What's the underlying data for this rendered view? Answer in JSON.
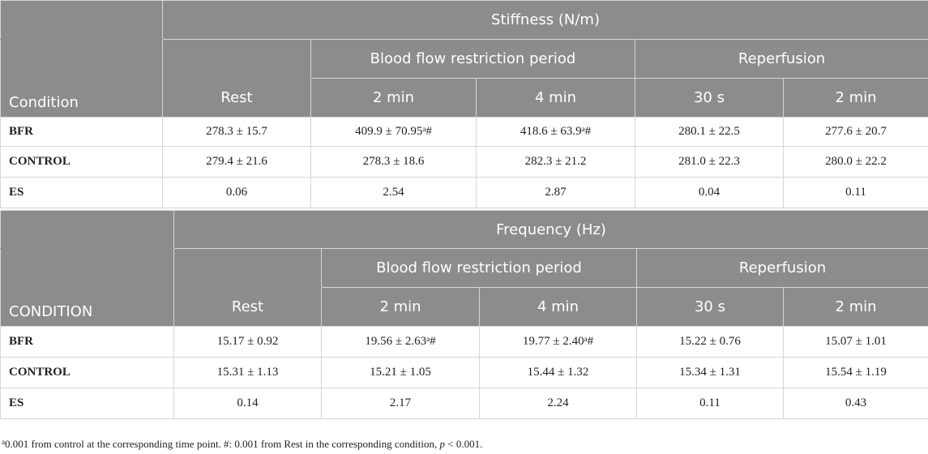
{
  "tables": [
    {
      "measure": "Stiffness (N/m)",
      "condition_header": "Condition",
      "groups": [
        "Blood flow restriction period",
        "Reperfusion"
      ],
      "columns": [
        "Rest",
        "2 min",
        "4 min",
        "30 s",
        "2 min"
      ],
      "rows": [
        {
          "label": "BFR",
          "cells": [
            {
              "v": "278.3 ± 15.7",
              "sup": "",
              "tail": ""
            },
            {
              "v": "409.9 ± 70.95",
              "sup": "a",
              "tail": "#"
            },
            {
              "v": "418.6 ± 63.9",
              "sup": "a",
              "tail": "#"
            },
            {
              "v": "280.1 ± 22.5",
              "sup": "",
              "tail": ""
            },
            {
              "v": "277.6 ± 20.7",
              "sup": "",
              "tail": ""
            }
          ]
        },
        {
          "label": "CONTROL",
          "cells": [
            {
              "v": "279.4 ± 21.6",
              "sup": "",
              "tail": ""
            },
            {
              "v": "278.3 ± 18.6",
              "sup": "",
              "tail": ""
            },
            {
              "v": "282.3 ± 21.2",
              "sup": "",
              "tail": ""
            },
            {
              "v": "281.0 ± 22.3",
              "sup": "",
              "tail": ""
            },
            {
              "v": "280.0 ± 22.2",
              "sup": "",
              "tail": ""
            }
          ]
        },
        {
          "label": "ES",
          "cells": [
            {
              "v": "0.06",
              "sup": "",
              "tail": ""
            },
            {
              "v": "2.54",
              "sup": "",
              "tail": ""
            },
            {
              "v": "2.87",
              "sup": "",
              "tail": ""
            },
            {
              "v": "0.04",
              "sup": "",
              "tail": ""
            },
            {
              "v": "0.11",
              "sup": "",
              "tail": ""
            }
          ]
        }
      ]
    },
    {
      "measure": "Frequency (Hz)",
      "condition_header": "CONDITION",
      "groups": [
        "Blood flow restriction period",
        "Reperfusion"
      ],
      "columns": [
        "Rest",
        "2 min",
        "4 min",
        "30 s",
        "2 min"
      ],
      "rows": [
        {
          "label": "BFR",
          "cells": [
            {
              "v": "15.17 ± 0.92",
              "sup": "",
              "tail": ""
            },
            {
              "v": "19.56 ± 2.63",
              "sup": "a",
              "tail": "#"
            },
            {
              "v": "19.77 ± 2.40",
              "sup": "a",
              "tail": "#"
            },
            {
              "v": "15.22 ± 0.76",
              "sup": "",
              "tail": ""
            },
            {
              "v": "15.07 ± 1.01",
              "sup": "",
              "tail": ""
            }
          ]
        },
        {
          "label": "CONTROL",
          "cells": [
            {
              "v": "15.31 ± 1.13",
              "sup": "",
              "tail": ""
            },
            {
              "v": "15.21 ± 1.05",
              "sup": "",
              "tail": ""
            },
            {
              "v": "15.44 ± 1.32",
              "sup": "",
              "tail": ""
            },
            {
              "v": "15.34 ± 1.31",
              "sup": "",
              "tail": ""
            },
            {
              "v": "15.54 ± 1.19",
              "sup": "",
              "tail": ""
            }
          ]
        },
        {
          "label": "ES",
          "cells": [
            {
              "v": "0.14",
              "sup": "",
              "tail": ""
            },
            {
              "v": "2.17",
              "sup": "",
              "tail": ""
            },
            {
              "v": "2.24",
              "sup": "",
              "tail": ""
            },
            {
              "v": "0.11",
              "sup": "",
              "tail": ""
            },
            {
              "v": "0.43",
              "sup": "",
              "tail": ""
            }
          ]
        }
      ]
    }
  ],
  "footnote": {
    "sup": "a",
    "text": "0.001 from control at the corresponding time point. #: 0.001 from Rest in the corresponding condition, ",
    "p": "p",
    "tail": " < 0.001."
  },
  "colors": {
    "header_bg": "#8c8c8c",
    "header_text": "#ffffff",
    "border": "#d6d6d6"
  }
}
